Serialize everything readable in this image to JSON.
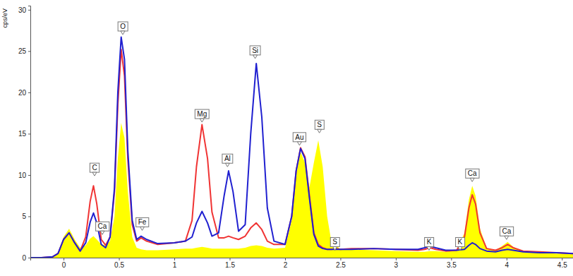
{
  "chart_data": {
    "type": "line",
    "y_label": "cps/eV",
    "x": [
      -0.3,
      -0.2,
      -0.1,
      -0.05,
      0,
      0.05,
      0.1,
      0.15,
      0.2,
      0.24,
      0.27,
      0.3,
      0.34,
      0.38,
      0.42,
      0.46,
      0.49,
      0.52,
      0.55,
      0.58,
      0.62,
      0.66,
      0.7,
      0.75,
      0.85,
      1.0,
      1.1,
      1.16,
      1.2,
      1.25,
      1.3,
      1.34,
      1.4,
      1.45,
      1.49,
      1.53,
      1.58,
      1.64,
      1.69,
      1.74,
      1.79,
      1.84,
      1.9,
      2.0,
      2.06,
      2.1,
      2.14,
      2.18,
      2.22,
      2.26,
      2.3,
      2.34,
      2.38,
      2.42,
      2.46,
      2.5,
      2.6,
      2.8,
      3.0,
      3.2,
      3.26,
      3.31,
      3.36,
      3.45,
      3.55,
      3.62,
      3.66,
      3.69,
      3.72,
      3.76,
      3.82,
      3.9,
      3.96,
      4.01,
      4.06,
      4.15,
      4.3,
      4.45,
      4.6
    ],
    "series": [
      {
        "type": "area",
        "color": "#ffff00",
        "values": [
          0,
          0,
          0.1,
          0.6,
          2.5,
          3.5,
          2.2,
          1.2,
          1.5,
          2.3,
          2.6,
          2.2,
          1.6,
          1.5,
          2.0,
          5.0,
          12.0,
          16.3,
          14.5,
          8.0,
          2.5,
          1.2,
          1.0,
          0.9,
          0.9,
          1.0,
          1.1,
          1.1,
          1.2,
          1.3,
          1.2,
          1.1,
          1.1,
          1.1,
          1.1,
          1.1,
          1.1,
          1.2,
          1.4,
          1.5,
          1.4,
          1.2,
          1.1,
          1.2,
          4.5,
          10.0,
          12.8,
          11.5,
          8.5,
          11.5,
          14.2,
          11.0,
          5.0,
          1.8,
          1.5,
          1.0,
          1.0,
          0.9,
          0.8,
          0.7,
          0.7,
          0.8,
          0.8,
          0.7,
          0.9,
          3.0,
          7.0,
          8.7,
          7.5,
          3.5,
          1.2,
          0.9,
          1.4,
          1.9,
          1.3,
          0.8,
          0.6,
          0.5,
          0.5
        ]
      },
      {
        "type": "line",
        "color": "#f03434",
        "values": [
          0,
          0,
          0.1,
          0.5,
          2.2,
          3.0,
          1.8,
          0.8,
          2.5,
          6.8,
          8.7,
          6.5,
          2.2,
          1.5,
          2.5,
          8.0,
          18.5,
          25.2,
          22.0,
          12.0,
          4.0,
          2.0,
          2.4,
          2.0,
          1.6,
          1.8,
          2.0,
          4.5,
          11.0,
          16.1,
          12.0,
          5.5,
          2.4,
          2.4,
          2.6,
          2.4,
          2.2,
          2.6,
          3.6,
          4.2,
          3.4,
          2.0,
          1.6,
          1.6,
          5.0,
          10.5,
          13.3,
          12.2,
          7.5,
          3.0,
          1.6,
          1.2,
          1.0,
          1.0,
          1.1,
          1.0,
          1.1,
          1.1,
          1.0,
          0.9,
          1.0,
          1.2,
          1.0,
          0.8,
          0.9,
          2.5,
          6.0,
          7.6,
          6.5,
          3.0,
          1.1,
          0.9,
          1.2,
          1.6,
          1.2,
          0.8,
          0.7,
          0.6,
          0.5
        ]
      },
      {
        "type": "line",
        "color": "#2020d0",
        "values": [
          0,
          0,
          0.1,
          0.5,
          2.2,
          3.0,
          1.8,
          0.8,
          1.8,
          4.3,
          5.4,
          4.2,
          1.6,
          1.2,
          2.5,
          8.5,
          20.0,
          26.7,
          24.0,
          13.0,
          4.5,
          2.2,
          2.6,
          2.2,
          1.7,
          1.8,
          2.0,
          2.5,
          4.2,
          5.6,
          4.2,
          2.6,
          3.0,
          7.5,
          10.5,
          8.0,
          3.2,
          4.0,
          15.0,
          23.5,
          17.0,
          6.0,
          2.0,
          1.6,
          5.0,
          10.5,
          13.2,
          12.0,
          7.2,
          2.8,
          1.4,
          1.1,
          1.0,
          1.0,
          1.0,
          1.0,
          1.0,
          1.1,
          1.0,
          1.0,
          1.2,
          1.4,
          1.2,
          0.9,
          0.9,
          1.0,
          1.5,
          1.8,
          1.6,
          1.1,
          0.8,
          0.7,
          0.9,
          1.0,
          0.9,
          0.7,
          0.6,
          0.6,
          0.5
        ]
      }
    ],
    "annotations": [
      {
        "text": "C",
        "x": 0.28,
        "y": 9.9
      },
      {
        "text": "Ca",
        "x": 0.35,
        "y": 2.8
      },
      {
        "text": "O",
        "x": 0.535,
        "y": 27.0
      },
      {
        "text": "Fe",
        "x": 0.71,
        "y": 3.3
      },
      {
        "text": "Mg",
        "x": 1.25,
        "y": 16.4
      },
      {
        "text": "Al",
        "x": 1.48,
        "y": 11.0
      },
      {
        "text": "Si",
        "x": 1.73,
        "y": 24.1
      },
      {
        "text": "Au",
        "x": 2.13,
        "y": 13.6
      },
      {
        "text": "S",
        "x": 2.31,
        "y": 15.1
      },
      {
        "text": "S",
        "x": 2.45,
        "y": 0.9
      },
      {
        "text": "K",
        "x": 3.3,
        "y": 0.9
      },
      {
        "text": "K",
        "x": 3.58,
        "y": 0.9
      },
      {
        "text": "Ca",
        "x": 3.69,
        "y": 9.2
      },
      {
        "text": "Ca",
        "x": 4.0,
        "y": 2.2
      }
    ],
    "xlim": [
      -0.3,
      4.6
    ],
    "ylim": [
      0,
      30.5
    ],
    "xticks": [
      0,
      0.5,
      1,
      1.5,
      2,
      2.5,
      3,
      3.5,
      4,
      4.5
    ],
    "yticks": [
      0,
      5,
      10,
      15,
      20,
      25,
      30
    ],
    "grid": false
  }
}
